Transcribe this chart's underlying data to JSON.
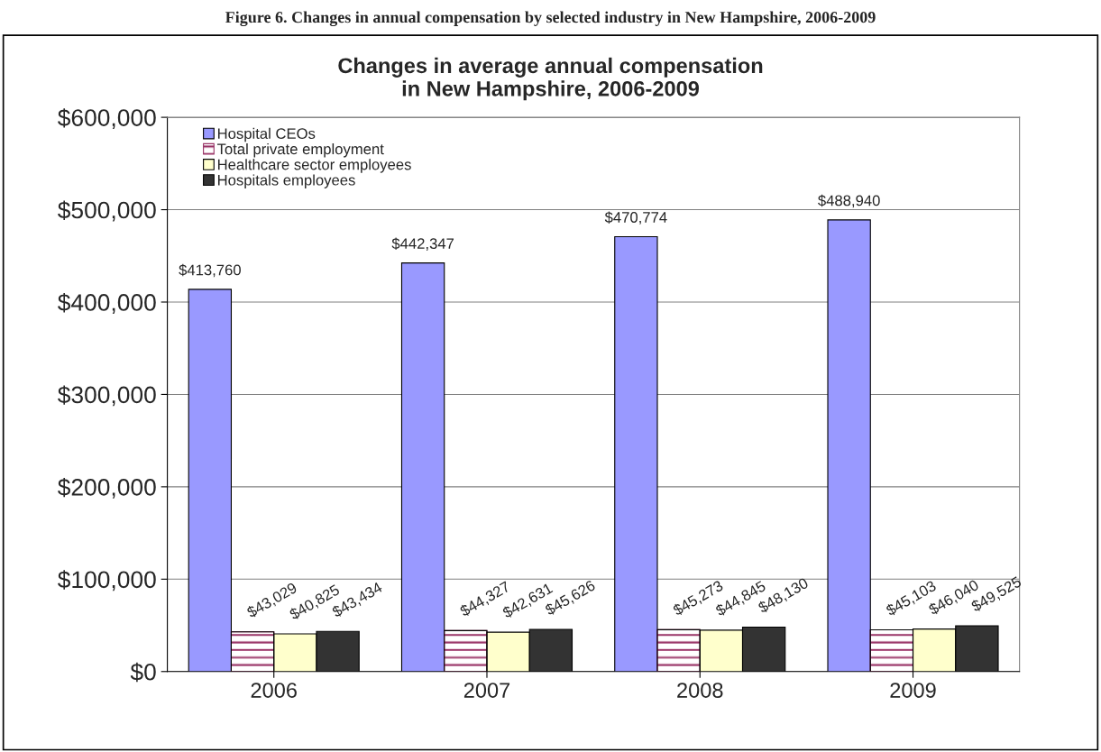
{
  "chart_data": {
    "type": "bar",
    "title": "Changes in average annual compensation\nin New Hampshire, 2006-2009",
    "annotations": [
      "Figure 6. Changes in annual compensation by selected industry in New Hampshire, 2006-2009"
    ],
    "categories": [
      "2006",
      "2007",
      "2008",
      "2009"
    ],
    "series": [
      {
        "name": "Hospital CEOs",
        "color": "#9999ff",
        "values": [
          413760,
          442347,
          470774,
          488940
        ],
        "value_labels": [
          "$413,760",
          "$442,347",
          "$470,774",
          "$488,940"
        ]
      },
      {
        "name": "Total private employment",
        "color": "#993366",
        "values": [
          43029,
          44327,
          45273,
          45103
        ],
        "value_labels": [
          "$43,029",
          "$44,327",
          "$45,273",
          "$45,103"
        ]
      },
      {
        "name": "Healthcare sector employees",
        "color": "#ffffcc",
        "values": [
          40825,
          42631,
          44845,
          46040
        ],
        "value_labels": [
          "$40,825",
          "$42,631",
          "$44,845",
          "$46,040"
        ]
      },
      {
        "name": "Hospitals employees",
        "color": "#333333",
        "values": [
          43434,
          45626,
          48130,
          49525
        ],
        "value_labels": [
          "$43,434",
          "$45,626",
          "$48,130",
          "$49,525"
        ]
      }
    ],
    "ylim": [
      0,
      600000
    ],
    "yticks": [
      {
        "value": 0,
        "label": "$0"
      },
      {
        "value": 100000,
        "label": "$100,000"
      },
      {
        "value": 200000,
        "label": "$200,000"
      },
      {
        "value": 300000,
        "label": "$300,000"
      },
      {
        "value": 400000,
        "label": "$400,000"
      },
      {
        "value": 500000,
        "label": "$500,000"
      },
      {
        "value": 600000,
        "label": "$600,000"
      }
    ],
    "grid": "y",
    "legend": "top left"
  }
}
